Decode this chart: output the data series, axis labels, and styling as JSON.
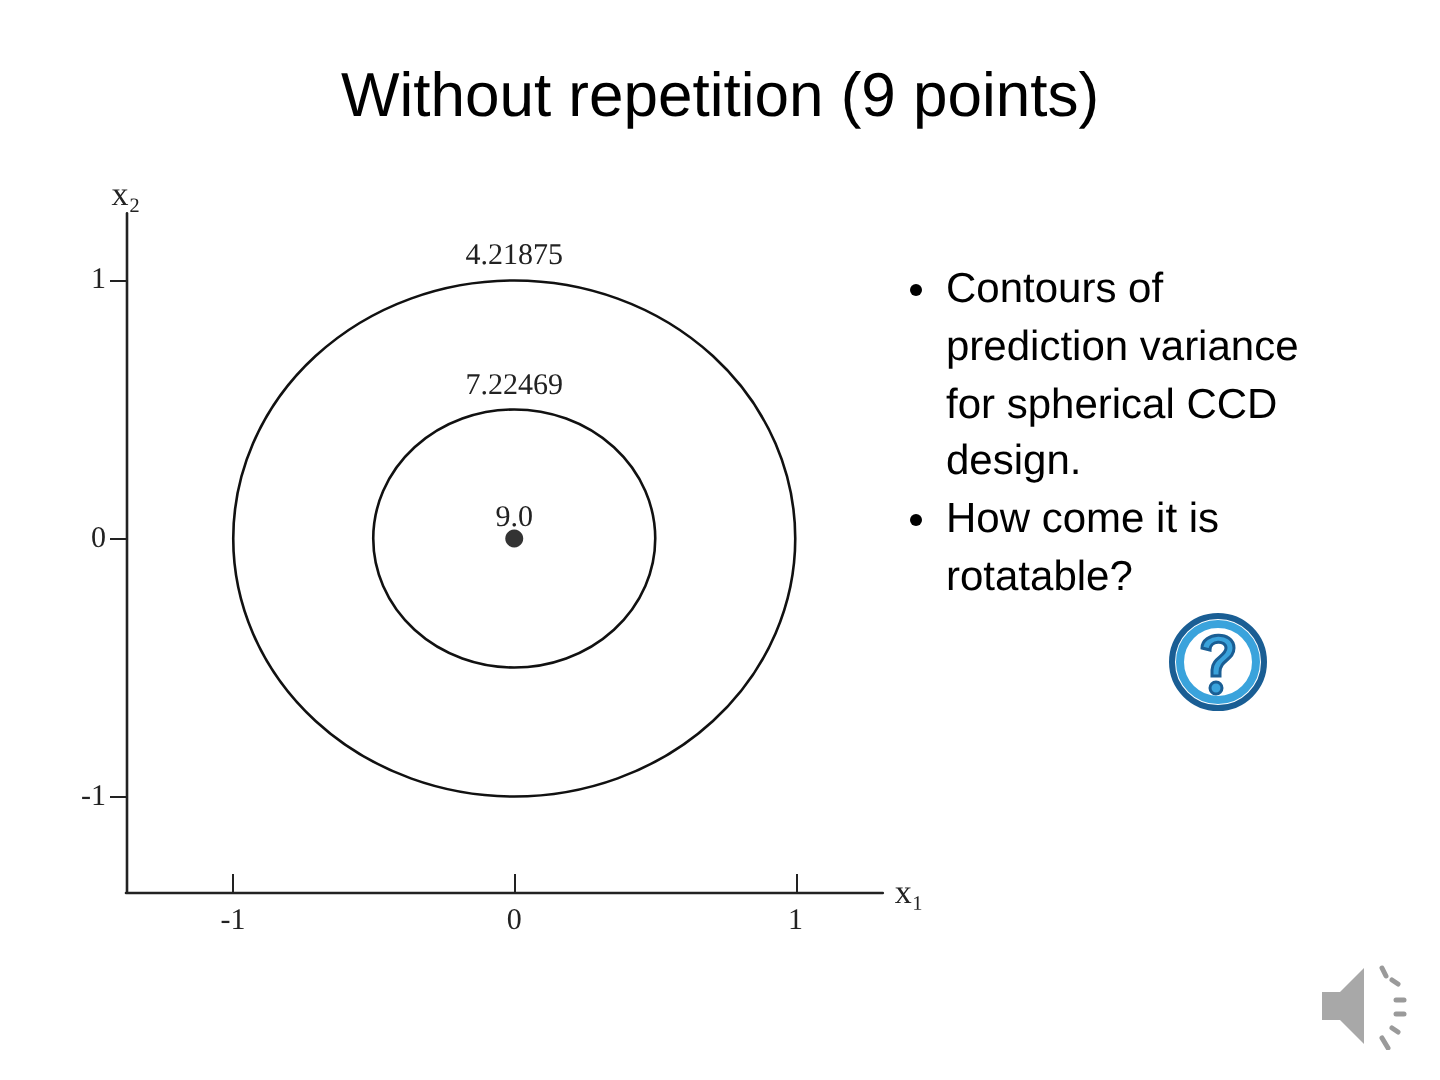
{
  "chart_data": {
    "type": "scatter",
    "title": "Without repetition (9 points)",
    "xlabel": "x₁",
    "ylabel": "x₂",
    "annotations": [
      "4.21875",
      "7.22469",
      {
        "text": "9.0",
        "x": 0,
        "y": 0
      },
      "Contours of prediction variance for spherical CCD design.",
      "How come it is rotatable?"
    ],
    "series": [
      {
        "color": "#000000",
        "x": [
          0
        ],
        "values": [
          0
        ]
      }
    ],
    "xlim": [
      -1.38,
      1.31
    ],
    "ylim": [
      -1.37,
      1.26
    ],
    "xticks": [
      -1,
      0,
      1
    ],
    "yticks": [
      -1,
      0,
      1
    ],
    "grid": false,
    "marker": "circle"
  }
}
